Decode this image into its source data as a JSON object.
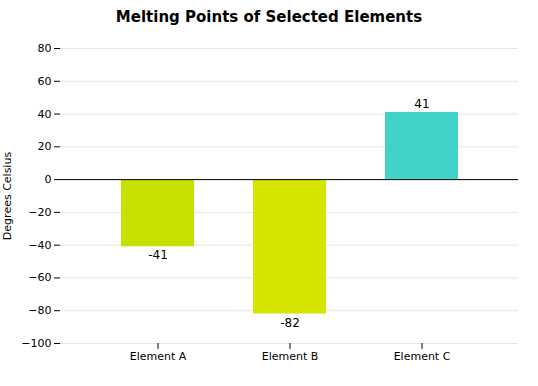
{
  "chart_data": {
    "type": "bar",
    "title": "Melting Points of Selected Elements",
    "ylabel": "Degrees Celsius",
    "categories": [
      "Element A",
      "Element B",
      "Element C"
    ],
    "values": [
      -41,
      -82,
      41
    ],
    "colors": [
      "#c8e000",
      "#d4e600",
      "#40d4c8"
    ],
    "ylim": [
      -100,
      80
    ],
    "yticks": [
      -100,
      -80,
      -60,
      -40,
      -20,
      0,
      20,
      40,
      60,
      80
    ],
    "grid": true,
    "data_labels": true
  }
}
